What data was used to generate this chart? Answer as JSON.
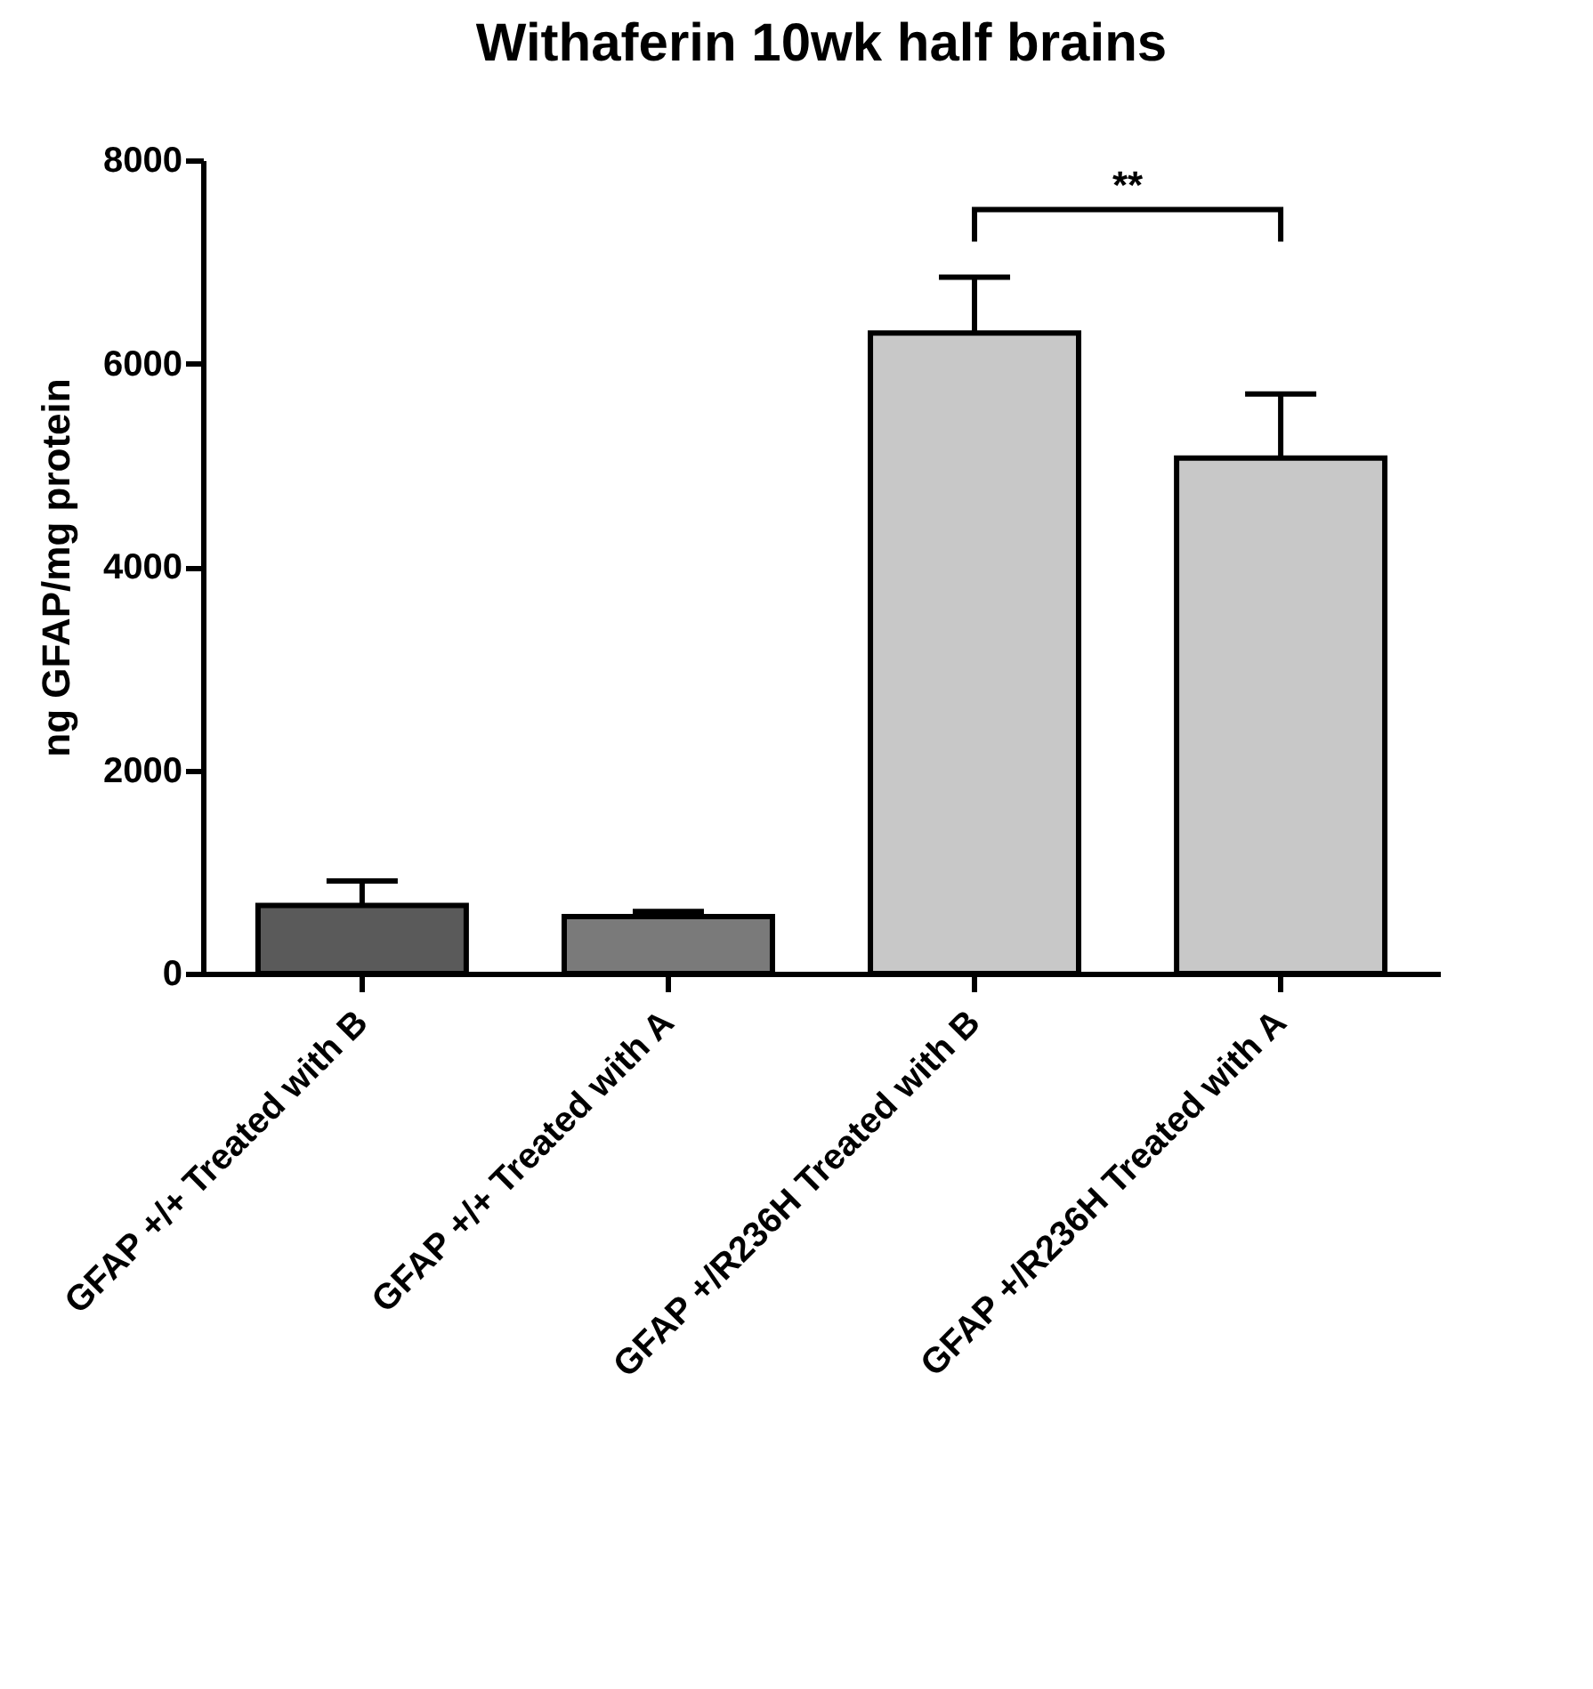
{
  "chart_data": {
    "type": "bar",
    "title": "Withaferin 10wk half brains",
    "ylabel": "ng GFAP/mg protein",
    "categories": [
      "GFAP +/+ Treated with B",
      "GFAP +/+ Treated with A",
      "GFAP +/R236H Treated with B",
      "GFAP +/R236H Treated with A"
    ],
    "values": [
      670,
      560,
      6300,
      5070
    ],
    "colors": [
      "#5a5a5a",
      "#7a7a7a",
      "#c8c8c8",
      "#c8c8c8"
    ],
    "errors": [
      [
        670,
        910
      ],
      [
        560,
        610
      ],
      [
        6300,
        6850
      ],
      [
        5070,
        5700
      ]
    ],
    "ylim": [
      0,
      8000
    ],
    "yticks": [
      0,
      2000,
      4000,
      6000,
      8000
    ],
    "grid": false,
    "annotations": [
      "**"
    ]
  }
}
